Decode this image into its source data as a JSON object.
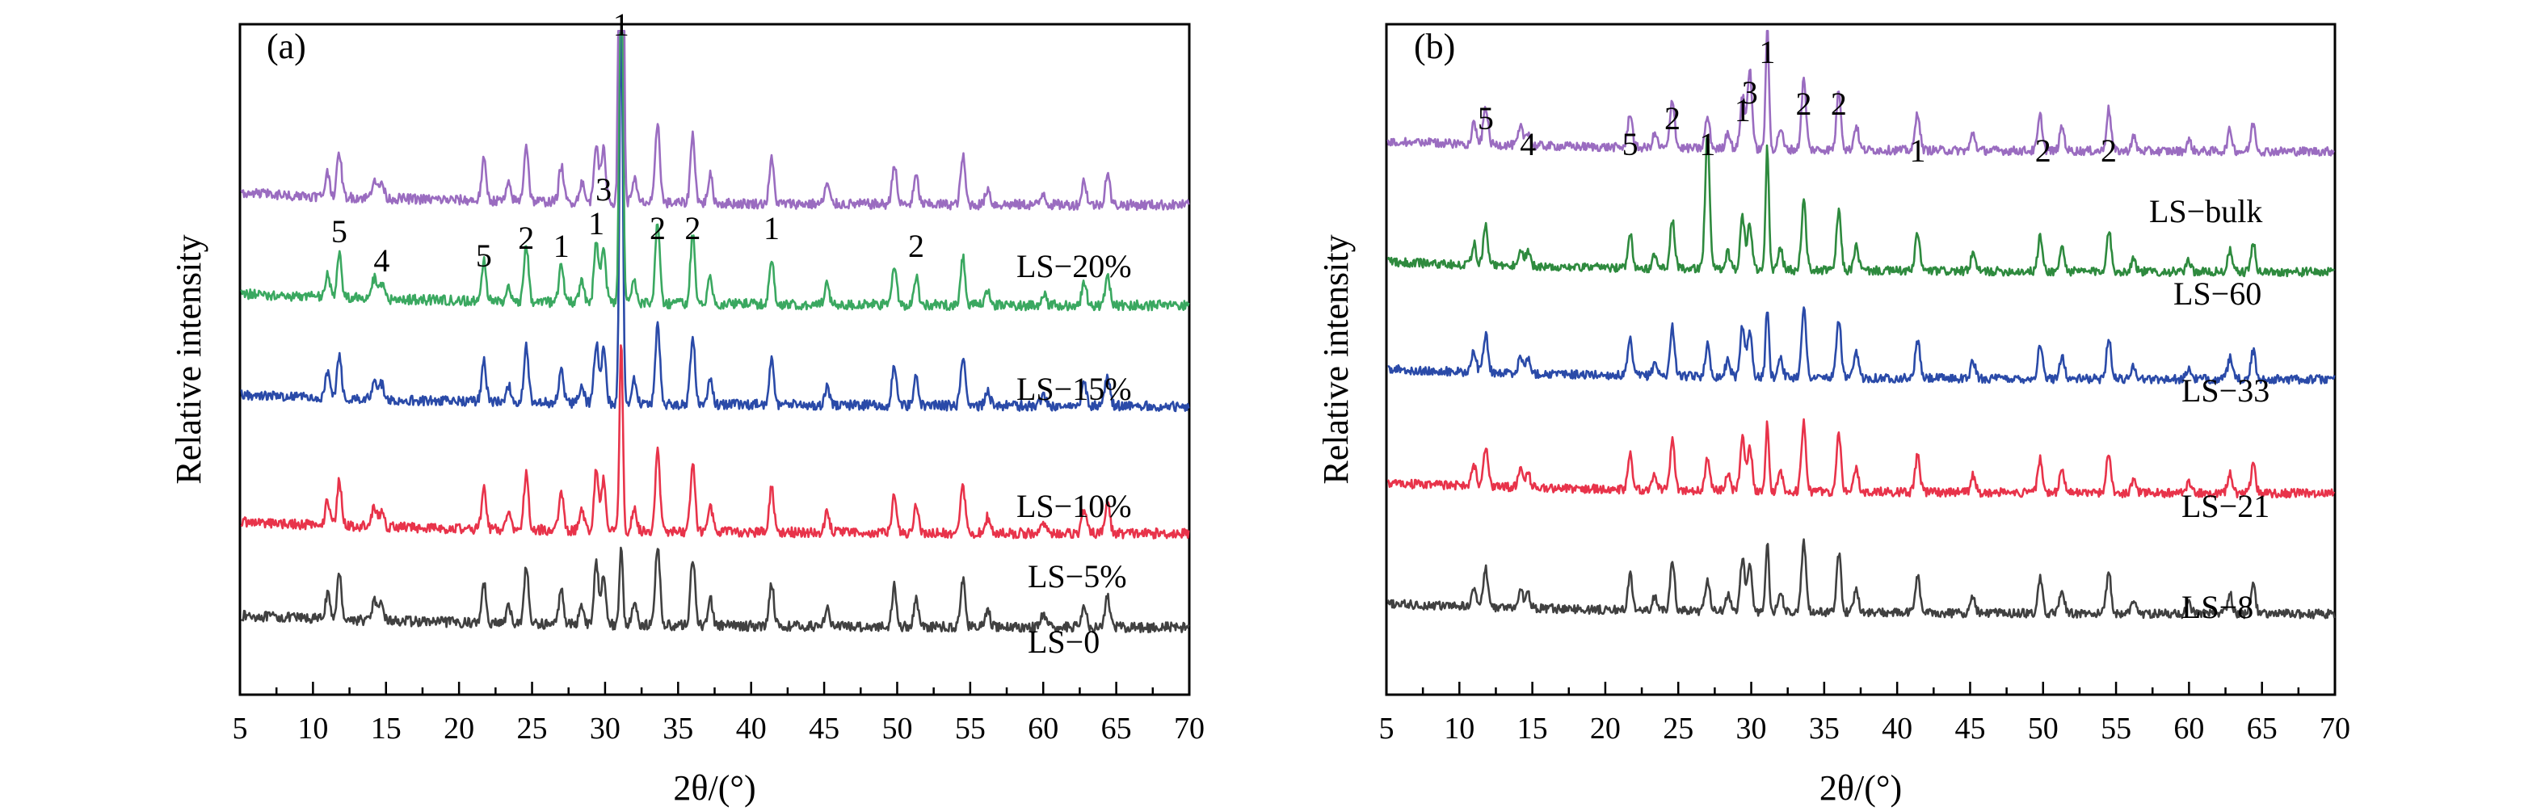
{
  "chart_data": [
    {
      "type": "line",
      "panel_label": "(a)",
      "xlabel": "2θ/(°)",
      "ylabel": "Relative intensity",
      "xlim": [
        5,
        70
      ],
      "xticks": [
        5,
        10,
        15,
        20,
        25,
        30,
        35,
        40,
        45,
        50,
        55,
        60,
        65,
        70
      ],
      "y_ticks_shown": false,
      "series": [
        {
          "name": "LS−0",
          "color": "#404040",
          "baseline": 0.1,
          "peak_scale": 0.3
        },
        {
          "name": "LS−5%",
          "color": "#e8334a",
          "baseline": 0.24,
          "peak_scale": 0.3
        },
        {
          "name": "LS−10%",
          "color": "#2a4aa8",
          "baseline": 0.43,
          "peak_scale": 0.3
        },
        {
          "name": "LS−15%",
          "color": "#3aa860",
          "baseline": 0.58,
          "peak_scale": 0.3
        },
        {
          "name": "LS−20%",
          "color": "#9a6cc0",
          "baseline": 0.73,
          "peak_scale": 0.3
        }
      ],
      "annotations": [
        {
          "text": "5",
          "x": 11.8
        },
        {
          "text": "4",
          "x": 14.7
        },
        {
          "text": "5",
          "x": 21.7
        },
        {
          "text": "2",
          "x": 24.6
        },
        {
          "text": "1",
          "x": 27.0
        },
        {
          "text": "1",
          "x": 29.4
        },
        {
          "text": "3",
          "x": 29.9
        },
        {
          "text": "1",
          "x": 31.1
        },
        {
          "text": "2",
          "x": 33.6
        },
        {
          "text": "2",
          "x": 36.0
        },
        {
          "text": "1",
          "x": 41.4
        },
        {
          "text": "2",
          "x": 51.3
        }
      ]
    },
    {
      "type": "line",
      "panel_label": "(b)",
      "xlabel": "2θ/(°)",
      "ylabel": "Relative intensity",
      "xlim": [
        5,
        70
      ],
      "xticks": [
        5,
        10,
        15,
        20,
        25,
        30,
        35,
        40,
        45,
        50,
        55,
        60,
        65,
        70
      ],
      "y_ticks_shown": false,
      "series": [
        {
          "name": "LS−8",
          "color": "#404040",
          "baseline": 0.12,
          "peak_scale": 0.26
        },
        {
          "name": "LS−21",
          "color": "#e8334a",
          "baseline": 0.3,
          "peak_scale": 0.26
        },
        {
          "name": "LS−33",
          "color": "#2a4aa8",
          "baseline": 0.47,
          "peak_scale": 0.26
        },
        {
          "name": "LS−60",
          "color": "#2e8a3e",
          "baseline": 0.63,
          "peak_scale": 0.26
        },
        {
          "name": "LS−bulk",
          "color": "#9a6cc0",
          "baseline": 0.81,
          "peak_scale": 0.26
        }
      ],
      "annotations": [
        {
          "text": "5",
          "x": 11.8
        },
        {
          "text": "4",
          "x": 14.7
        },
        {
          "text": "5",
          "x": 21.7
        },
        {
          "text": "2",
          "x": 24.6
        },
        {
          "text": "1",
          "x": 27.0
        },
        {
          "text": "1",
          "x": 29.4
        },
        {
          "text": "3",
          "x": 29.9
        },
        {
          "text": "1",
          "x": 31.1
        },
        {
          "text": "2",
          "x": 33.6
        },
        {
          "text": "2",
          "x": 36.0
        },
        {
          "text": "1",
          "x": 41.4
        },
        {
          "text": "2",
          "x": 50.0
        },
        {
          "text": "2",
          "x": 54.5
        }
      ]
    }
  ]
}
